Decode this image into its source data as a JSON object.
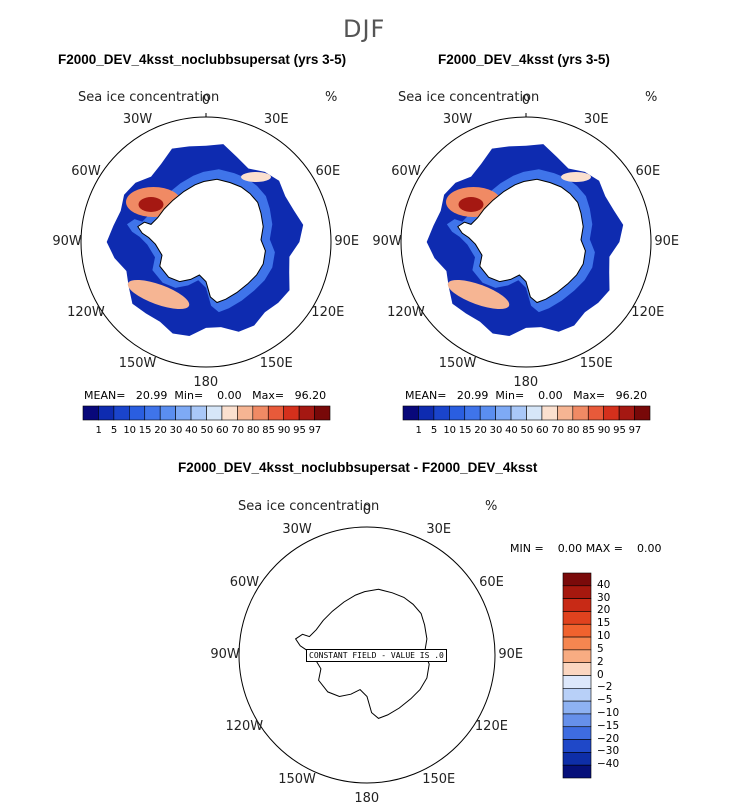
{
  "season": "DJF",
  "panels": [
    {
      "title": "F2000_DEV_4ksst_noclubbsupersat (yrs 3-5)",
      "variable": "Sea ice concentration",
      "units": "%",
      "stats": {
        "mean_label": "MEAN=",
        "mean": "20.99",
        "min_label": "Min=",
        "min": "0.00",
        "max_label": "Max=",
        "max": "96.20"
      }
    },
    {
      "title": "F2000_DEV_4ksst (yrs 3-5)",
      "variable": "Sea ice concentration",
      "units": "%",
      "stats": {
        "mean_label": "MEAN=",
        "mean": "20.99",
        "min_label": "Min=",
        "min": "0.00",
        "max_label": "Max=",
        "max": "96.20"
      }
    },
    {
      "title": "F2000_DEV_4ksst_noclubbsupersat - F2000_DEV_4ksst",
      "variable": "Sea ice concentration",
      "units": "%",
      "stats": {
        "min_label": "MIN =",
        "min": "0.00",
        "max_label": "MAX =",
        "max": "0.00"
      },
      "annotation": "CONSTANT FIELD - VALUE IS .0"
    }
  ],
  "lon_labels": [
    "0",
    "30E",
    "60E",
    "90E",
    "120E",
    "150E",
    "180",
    "150W",
    "120W",
    "90W",
    "60W",
    "30W"
  ],
  "chart_data": [
    {
      "type": "heatmap",
      "projection": "south-polar-stereographic",
      "panel": 1,
      "title": "F2000_DEV_4ksst_noclubbsupersat (yrs 3-5)",
      "colorbar_levels": [
        "1",
        "5",
        "10",
        "15",
        "20",
        "30",
        "40",
        "50",
        "60",
        "70",
        "80",
        "85",
        "90",
        "95",
        "97"
      ],
      "colorbar_colors": [
        "#08087a",
        "#0e2bb0",
        "#1a44cc",
        "#2a5ee0",
        "#3f74ea",
        "#5a8ef0",
        "#7eaaf5",
        "#a9c8f8",
        "#d6e6f8",
        "#fbe0cf",
        "#f6b593",
        "#f08a64",
        "#e85a3a",
        "#d4301c",
        "#a51812",
        "#780808"
      ],
      "mean": 20.99,
      "min": 0.0,
      "max": 96.2
    },
    {
      "type": "heatmap",
      "projection": "south-polar-stereographic",
      "panel": 2,
      "title": "F2000_DEV_4ksst (yrs 3-5)",
      "colorbar_levels": [
        "1",
        "5",
        "10",
        "15",
        "20",
        "30",
        "40",
        "50",
        "60",
        "70",
        "80",
        "85",
        "90",
        "95",
        "97"
      ],
      "mean": 20.99,
      "min": 0.0,
      "max": 96.2
    },
    {
      "type": "heatmap",
      "projection": "south-polar-stereographic",
      "panel": 3,
      "title": "F2000_DEV_4ksst_noclubbsupersat - F2000_DEV_4ksst",
      "colorbar_levels": [
        "40",
        "30",
        "20",
        "15",
        "10",
        "5",
        "2",
        "0",
        "-2",
        "-5",
        "-10",
        "-15",
        "-20",
        "-30",
        "-40"
      ],
      "colorbar_colors": [
        "#7a0a0a",
        "#a6180e",
        "#c82a16",
        "#e0421e",
        "#f0622e",
        "#f58650",
        "#f8ac82",
        "#fbd6c0",
        "#dde8fb",
        "#b8d0f8",
        "#8eb2f2",
        "#6690ea",
        "#3e6ce0",
        "#1f48c8",
        "#0e2ea8",
        "#06107a"
      ],
      "min": 0.0,
      "max": 0.0
    }
  ]
}
